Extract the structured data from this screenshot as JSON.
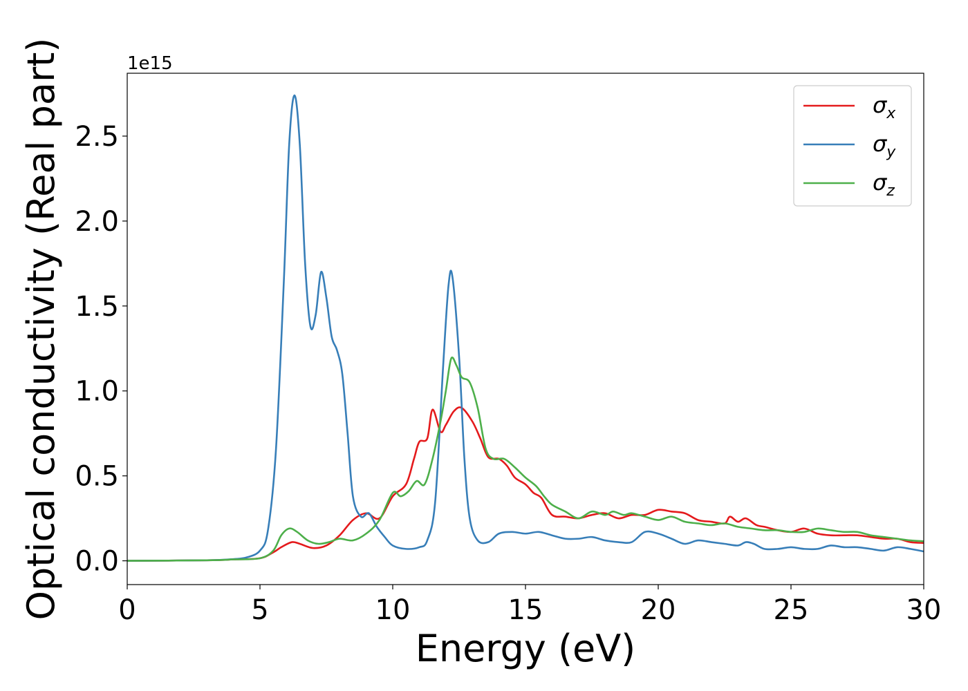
{
  "chart_data": {
    "type": "line",
    "xlabel": "Energy (eV)",
    "ylabel": "Optical conductivity (Real part)",
    "y_offset_label": "1e15",
    "xlim": [
      0,
      30
    ],
    "ylim": [
      -0.14,
      2.87
    ],
    "x_ticks": [
      0,
      5,
      10,
      15,
      20,
      25,
      30
    ],
    "x_tick_labels": [
      "0",
      "5",
      "10",
      "15",
      "20",
      "25",
      "30"
    ],
    "y_ticks": [
      0.0,
      0.5,
      1.0,
      1.5,
      2.0,
      2.5
    ],
    "y_tick_labels": [
      "0.0",
      "0.5",
      "1.0",
      "1.5",
      "2.0",
      "2.5"
    ],
    "grid": false,
    "legend_position": "top-right",
    "series": [
      {
        "name": "σx",
        "symbol": "σ",
        "subscript": "x",
        "color": "#e41a1c",
        "points": [
          [
            0,
            0
          ],
          [
            3,
            0.003
          ],
          [
            4,
            0.008
          ],
          [
            5,
            0.015
          ],
          [
            5.5,
            0.05
          ],
          [
            5.8,
            0.08
          ],
          [
            6.2,
            0.11
          ],
          [
            6.5,
            0.1
          ],
          [
            7,
            0.075
          ],
          [
            7.5,
            0.09
          ],
          [
            8,
            0.15
          ],
          [
            8.5,
            0.24
          ],
          [
            9,
            0.28
          ],
          [
            9.5,
            0.25
          ],
          [
            10,
            0.38
          ],
          [
            10.5,
            0.45
          ],
          [
            10.8,
            0.6
          ],
          [
            11,
            0.7
          ],
          [
            11.3,
            0.72
          ],
          [
            11.5,
            0.89
          ],
          [
            11.8,
            0.76
          ],
          [
            12,
            0.8
          ],
          [
            12.3,
            0.88
          ],
          [
            12.6,
            0.9
          ],
          [
            13,
            0.82
          ],
          [
            13.3,
            0.72
          ],
          [
            13.6,
            0.61
          ],
          [
            14,
            0.6
          ],
          [
            14.3,
            0.56
          ],
          [
            14.6,
            0.49
          ],
          [
            15,
            0.45
          ],
          [
            15.3,
            0.4
          ],
          [
            15.6,
            0.37
          ],
          [
            16,
            0.27
          ],
          [
            16.5,
            0.26
          ],
          [
            17,
            0.25
          ],
          [
            17.5,
            0.27
          ],
          [
            18,
            0.28
          ],
          [
            18.5,
            0.25
          ],
          [
            19,
            0.27
          ],
          [
            19.5,
            0.27
          ],
          [
            20,
            0.3
          ],
          [
            20.5,
            0.29
          ],
          [
            21,
            0.28
          ],
          [
            21.5,
            0.24
          ],
          [
            22,
            0.23
          ],
          [
            22.5,
            0.22
          ],
          [
            22.7,
            0.26
          ],
          [
            23,
            0.23
          ],
          [
            23.3,
            0.25
          ],
          [
            23.7,
            0.21
          ],
          [
            24,
            0.2
          ],
          [
            24.5,
            0.18
          ],
          [
            25,
            0.17
          ],
          [
            25.5,
            0.19
          ],
          [
            26,
            0.16
          ],
          [
            26.5,
            0.15
          ],
          [
            27,
            0.15
          ],
          [
            27.5,
            0.15
          ],
          [
            28,
            0.14
          ],
          [
            28.5,
            0.13
          ],
          [
            29,
            0.13
          ],
          [
            29.5,
            0.11
          ],
          [
            30,
            0.105
          ]
        ]
      },
      {
        "name": "σy",
        "symbol": "σ",
        "subscript": "y",
        "color": "#377eb8",
        "points": [
          [
            0,
            0
          ],
          [
            3,
            0.003
          ],
          [
            4,
            0.01
          ],
          [
            4.5,
            0.02
          ],
          [
            5,
            0.06
          ],
          [
            5.3,
            0.18
          ],
          [
            5.6,
            0.65
          ],
          [
            5.9,
            1.65
          ],
          [
            6.1,
            2.45
          ],
          [
            6.3,
            2.74
          ],
          [
            6.5,
            2.45
          ],
          [
            6.7,
            1.75
          ],
          [
            6.9,
            1.38
          ],
          [
            7.1,
            1.45
          ],
          [
            7.3,
            1.7
          ],
          [
            7.5,
            1.55
          ],
          [
            7.7,
            1.32
          ],
          [
            7.9,
            1.24
          ],
          [
            8.1,
            1.1
          ],
          [
            8.3,
            0.75
          ],
          [
            8.5,
            0.38
          ],
          [
            8.8,
            0.26
          ],
          [
            9.1,
            0.28
          ],
          [
            9.4,
            0.2
          ],
          [
            9.7,
            0.14
          ],
          [
            10,
            0.09
          ],
          [
            10.5,
            0.07
          ],
          [
            11,
            0.08
          ],
          [
            11.3,
            0.12
          ],
          [
            11.6,
            0.35
          ],
          [
            11.9,
            1.15
          ],
          [
            12.1,
            1.62
          ],
          [
            12.25,
            1.67
          ],
          [
            12.5,
            1.2
          ],
          [
            12.7,
            0.6
          ],
          [
            12.9,
            0.25
          ],
          [
            13.2,
            0.12
          ],
          [
            13.6,
            0.11
          ],
          [
            14,
            0.16
          ],
          [
            14.5,
            0.17
          ],
          [
            15,
            0.16
          ],
          [
            15.5,
            0.17
          ],
          [
            16,
            0.15
          ],
          [
            16.5,
            0.13
          ],
          [
            17,
            0.13
          ],
          [
            17.5,
            0.14
          ],
          [
            18,
            0.12
          ],
          [
            18.5,
            0.11
          ],
          [
            19,
            0.11
          ],
          [
            19.5,
            0.17
          ],
          [
            20,
            0.16
          ],
          [
            20.5,
            0.13
          ],
          [
            21,
            0.1
          ],
          [
            21.5,
            0.12
          ],
          [
            22,
            0.11
          ],
          [
            22.5,
            0.1
          ],
          [
            23,
            0.09
          ],
          [
            23.3,
            0.11
          ],
          [
            23.6,
            0.1
          ],
          [
            24,
            0.07
          ],
          [
            24.5,
            0.07
          ],
          [
            25,
            0.08
          ],
          [
            25.5,
            0.07
          ],
          [
            26,
            0.07
          ],
          [
            26.5,
            0.09
          ],
          [
            27,
            0.08
          ],
          [
            27.5,
            0.08
          ],
          [
            28,
            0.07
          ],
          [
            28.5,
            0.06
          ],
          [
            29,
            0.08
          ],
          [
            29.5,
            0.07
          ],
          [
            30,
            0.055
          ]
        ]
      },
      {
        "name": "σz",
        "symbol": "σ",
        "subscript": "z",
        "color": "#4daf4a",
        "points": [
          [
            0,
            0
          ],
          [
            3,
            0.003
          ],
          [
            4,
            0.008
          ],
          [
            5,
            0.015
          ],
          [
            5.5,
            0.06
          ],
          [
            5.8,
            0.15
          ],
          [
            6.1,
            0.19
          ],
          [
            6.4,
            0.17
          ],
          [
            6.8,
            0.12
          ],
          [
            7.2,
            0.1
          ],
          [
            7.6,
            0.11
          ],
          [
            8,
            0.13
          ],
          [
            8.5,
            0.12
          ],
          [
            9,
            0.16
          ],
          [
            9.5,
            0.24
          ],
          [
            10,
            0.4
          ],
          [
            10.3,
            0.38
          ],
          [
            10.6,
            0.41
          ],
          [
            10.9,
            0.47
          ],
          [
            11.2,
            0.45
          ],
          [
            11.5,
            0.6
          ],
          [
            11.8,
            0.82
          ],
          [
            12,
            1.0
          ],
          [
            12.2,
            1.19
          ],
          [
            12.4,
            1.15
          ],
          [
            12.6,
            1.08
          ],
          [
            12.9,
            1.05
          ],
          [
            13.2,
            0.9
          ],
          [
            13.5,
            0.66
          ],
          [
            13.8,
            0.6
          ],
          [
            14.2,
            0.6
          ],
          [
            14.6,
            0.55
          ],
          [
            15,
            0.49
          ],
          [
            15.4,
            0.44
          ],
          [
            15.7,
            0.38
          ],
          [
            16,
            0.33
          ],
          [
            16.5,
            0.29
          ],
          [
            17,
            0.25
          ],
          [
            17.5,
            0.29
          ],
          [
            18,
            0.27
          ],
          [
            18.3,
            0.29
          ],
          [
            18.7,
            0.27
          ],
          [
            19,
            0.28
          ],
          [
            19.5,
            0.26
          ],
          [
            20,
            0.24
          ],
          [
            20.5,
            0.26
          ],
          [
            21,
            0.23
          ],
          [
            21.5,
            0.22
          ],
          [
            22,
            0.21
          ],
          [
            22.5,
            0.22
          ],
          [
            23,
            0.2
          ],
          [
            23.5,
            0.19
          ],
          [
            24,
            0.18
          ],
          [
            24.5,
            0.18
          ],
          [
            25,
            0.17
          ],
          [
            25.5,
            0.17
          ],
          [
            26,
            0.19
          ],
          [
            26.5,
            0.18
          ],
          [
            27,
            0.17
          ],
          [
            27.5,
            0.17
          ],
          [
            28,
            0.15
          ],
          [
            28.5,
            0.14
          ],
          [
            29,
            0.13
          ],
          [
            29.5,
            0.12
          ],
          [
            30,
            0.115
          ]
        ]
      }
    ]
  }
}
